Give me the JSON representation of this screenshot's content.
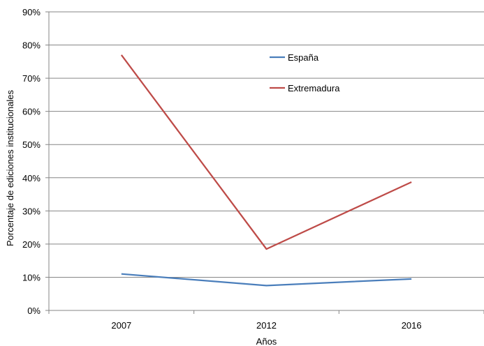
{
  "chart_data": {
    "type": "line",
    "title": "",
    "xlabel": "Años",
    "ylabel": "Porcentaje de ediciones institucionales",
    "categories": [
      "2007",
      "2012",
      "2016"
    ],
    "ylim": [
      0,
      90
    ],
    "yticks": [
      0,
      10,
      20,
      30,
      40,
      50,
      60,
      70,
      80,
      90
    ],
    "ytick_labels": [
      "0%",
      "10%",
      "20%",
      "30%",
      "40%",
      "50%",
      "60%",
      "70%",
      "80%",
      "90%"
    ],
    "grid": true,
    "legend_position": "inside-top-center",
    "series": [
      {
        "name": "España",
        "values": [
          11,
          7.5,
          9.5
        ],
        "color": "#4a7ebb"
      },
      {
        "name": "Extremadura",
        "values": [
          77,
          18.5,
          38.7
        ],
        "color": "#be4b48"
      }
    ]
  }
}
